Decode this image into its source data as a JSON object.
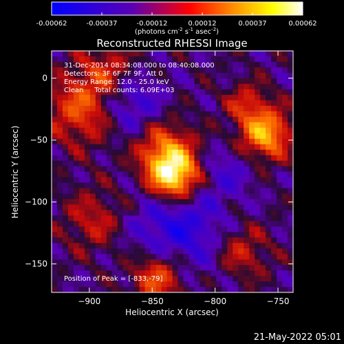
{
  "colorbar": {
    "colormap": [
      "#0000ff",
      "#5a00b4",
      "#ff0000",
      "#ff8c00",
      "#ffff00",
      "#ffffff"
    ],
    "range": [
      -0.00062,
      0.00062
    ],
    "tick_labels": [
      "-0.00062",
      "-0.00037",
      "-0.00012",
      "0.00012",
      "0.00037",
      "0.00062"
    ],
    "unit_parts": {
      "a": "(photons cm",
      "b": "-2",
      "c": " s",
      "d": "-1",
      "e": " asec",
      "f": "-2",
      "g": ")"
    }
  },
  "chart_data": {
    "type": "heatmap",
    "title": "Reconstructed RHESSI Image",
    "xlabel": "Heliocentric X (arcsec)",
    "ylabel": "Heliocentric Y (arcsec)",
    "xlim": [
      -930,
      -738
    ],
    "ylim": [
      -173,
      22
    ],
    "x_ticks": [
      {
        "value": -900,
        "label": "−900"
      },
      {
        "value": -850,
        "label": "−850"
      },
      {
        "value": -800,
        "label": "−800"
      },
      {
        "value": -750,
        "label": "−750"
      }
    ],
    "y_ticks": [
      {
        "value": 0,
        "label": "0"
      },
      {
        "value": -50,
        "label": "−50"
      },
      {
        "value": -100,
        "label": "−100"
      },
      {
        "value": -150,
        "label": "−150"
      }
    ],
    "grid": false,
    "peak": {
      "x": -833,
      "y": -79
    },
    "annotations": [
      "31-Dec-2014 08:34:08.000 to 08:40:08.000",
      "Detectors: 3F 6F 7F 9F, Att 0",
      "Energy Range: 12.0 - 25.0 keV",
      "Clean     Total counts: 6.09E+03",
      "Position of Peak = [-833,-79]"
    ]
  },
  "timestamp": "21-May-2022 05:01"
}
